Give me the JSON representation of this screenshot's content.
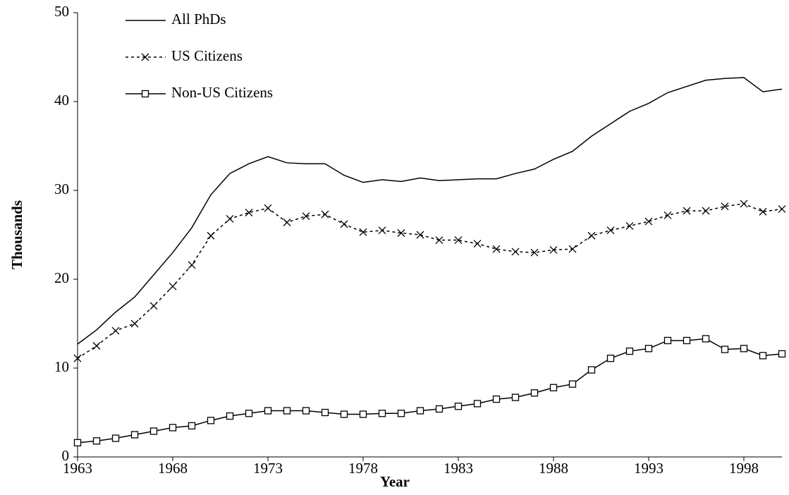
{
  "chart_data": {
    "type": "line",
    "x_label": "Year",
    "y_label": "Thousands",
    "x": [
      1963,
      1964,
      1965,
      1966,
      1967,
      1968,
      1969,
      1970,
      1971,
      1972,
      1973,
      1974,
      1975,
      1976,
      1977,
      1978,
      1979,
      1980,
      1981,
      1982,
      1983,
      1984,
      1985,
      1986,
      1987,
      1988,
      1989,
      1990,
      1991,
      1992,
      1993,
      1994,
      1995,
      1996,
      1997,
      1998,
      1999,
      2000
    ],
    "series": [
      {
        "name": "All PhDs",
        "color": "#000000",
        "dash": false,
        "marker": "none",
        "values": [
          12.7,
          14.3,
          16.3,
          18.0,
          20.5,
          23.0,
          25.8,
          29.5,
          31.9,
          33.0,
          33.8,
          33.1,
          33.0,
          33.0,
          31.7,
          30.9,
          31.2,
          31.0,
          31.4,
          31.1,
          31.2,
          31.3,
          31.3,
          31.9,
          32.4,
          33.5,
          34.4,
          36.1,
          37.5,
          38.9,
          39.8,
          41.0,
          41.7,
          42.4,
          42.6,
          42.7,
          41.1,
          41.4
        ]
      },
      {
        "name": "US Citizens",
        "color": "#000000",
        "dash": true,
        "marker": "x",
        "values": [
          11.1,
          12.5,
          14.2,
          15.0,
          17.0,
          19.2,
          21.6,
          24.9,
          26.8,
          27.5,
          28.0,
          26.4,
          27.1,
          27.3,
          26.2,
          25.3,
          25.5,
          25.2,
          25.0,
          24.4,
          24.4,
          24.0,
          23.4,
          23.1,
          23.0,
          23.3,
          23.4,
          24.9,
          25.5,
          26.0,
          26.5,
          27.2,
          27.7,
          27.7,
          28.2,
          28.5,
          27.6,
          27.9
        ]
      },
      {
        "name": "Non-US Citizens",
        "color": "#000000",
        "dash": false,
        "marker": "square",
        "values": [
          1.6,
          1.8,
          2.1,
          2.5,
          2.9,
          3.3,
          3.5,
          4.1,
          4.6,
          4.9,
          5.2,
          5.2,
          5.2,
          5.0,
          4.8,
          4.8,
          4.9,
          4.9,
          5.2,
          5.4,
          5.7,
          6.0,
          6.5,
          6.7,
          7.2,
          7.8,
          8.2,
          9.8,
          11.1,
          11.9,
          12.2,
          13.1,
          13.1,
          13.3,
          12.1,
          12.2,
          11.4,
          11.6
        ]
      }
    ],
    "xlim": [
      1963,
      2000
    ],
    "xticks": [
      1963,
      1968,
      1973,
      1978,
      1983,
      1988,
      1993,
      1998
    ],
    "ylim": [
      0,
      50
    ],
    "yticks": [
      0,
      10,
      20,
      30,
      40,
      50
    ],
    "grid": false,
    "legend": "top-left"
  }
}
